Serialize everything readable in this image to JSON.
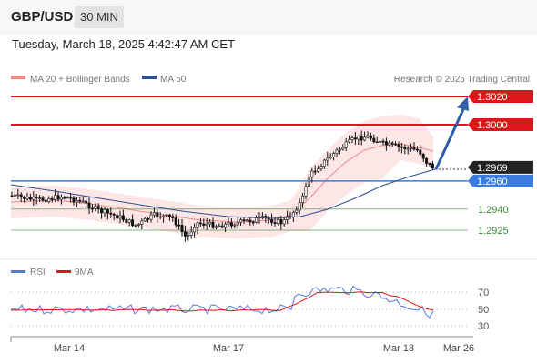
{
  "header": {
    "symbol": "GBP/USD",
    "interval": "30 MIN"
  },
  "timestamp": "Tuesday, March 18, 2025 4:42:47 AM CET",
  "legend": {
    "ma20_label": "MA 20 + Bollinger Bands",
    "ma50_label": "MA 50",
    "credit": "Research © 2025 Trading Central",
    "ma20_color": "#f08a86",
    "ma50_color": "#2f4f8f"
  },
  "levels": [
    {
      "value": "1.3020",
      "kind": "resistance",
      "color": "#e0151b"
    },
    {
      "value": "1.3000",
      "kind": "resistance",
      "color": "#e0151b"
    },
    {
      "value": "1.2969",
      "kind": "current",
      "color": "#222222"
    },
    {
      "value": "1.2960",
      "kind": "pivot",
      "color": "#3b7be0"
    },
    {
      "value": "1.2940",
      "kind": "support",
      "color": "#3a8a3a"
    },
    {
      "value": "1.2925",
      "kind": "support",
      "color": "#3a8a3a"
    }
  ],
  "rsi_panel": {
    "rsi_label": "RSI",
    "ma_label": "9MA",
    "rsi_color": "#5577dd",
    "ma_color": "#e0151b",
    "ticks": [
      "70",
      "50",
      "30"
    ]
  },
  "x_axis": {
    "labels": [
      "Mar 14",
      "Mar 17",
      "Mar 18",
      "Mar 26"
    ]
  },
  "chart_data": {
    "type": "candlestick",
    "instrument": "GBP/USD",
    "timeframe": "30 MIN",
    "ylim": [
      1.2915,
      1.303
    ],
    "target_arrow": {
      "from": 1.2969,
      "to": 1.302
    },
    "rsi_ylim": [
      20,
      80
    ]
  }
}
